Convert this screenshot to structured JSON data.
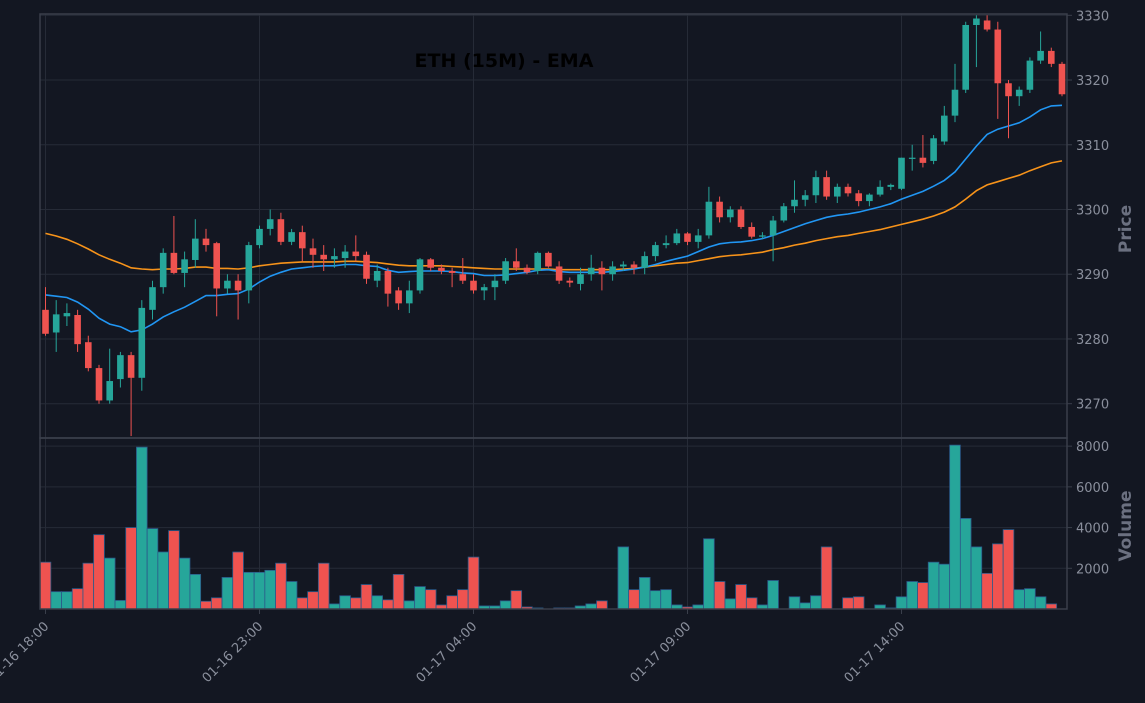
{
  "title": "ETH (15M) - EMA",
  "colors": {
    "background": "#131722",
    "grid": "#262b37",
    "frame": "#3a3f4b",
    "up": "#26a69a",
    "down": "#ef5350",
    "ema_fast": "#2196f3",
    "ema_slow": "#f7931a",
    "text": "#8a8f9c"
  },
  "chart_data": {
    "type": "candlestick",
    "title": "ETH (15M) - EMA",
    "x_tick_labels": [
      "01-16 18:00",
      "01-16 23:00",
      "01-17 04:00",
      "01-17 09:00",
      "01-17 14:00"
    ],
    "x_tick_indices": [
      0,
      20,
      40,
      60,
      80
    ],
    "price_axis": {
      "label": "Price",
      "ticks": [
        3270,
        3280,
        3290,
        3300,
        3310,
        3320,
        3330
      ],
      "range": [
        3264.7,
        3330.2
      ]
    },
    "volume_axis": {
      "label": "Volume",
      "ticks": [
        2000,
        4000,
        6000,
        8000
      ],
      "range": [
        0,
        8400
      ]
    },
    "grid": true,
    "candles": [
      {
        "o": 3284.5,
        "h": 3288,
        "l": 3280.5,
        "c": 3280.8
      },
      {
        "o": 3281,
        "h": 3286,
        "l": 3278,
        "c": 3283.8
      },
      {
        "o": 3283.5,
        "h": 3285.5,
        "l": 3282,
        "c": 3284
      },
      {
        "o": 3283.7,
        "h": 3284.5,
        "l": 3278,
        "c": 3279.2
      },
      {
        "o": 3279.5,
        "h": 3280.5,
        "l": 3275,
        "c": 3275.5
      },
      {
        "o": 3275.5,
        "h": 3276,
        "l": 3270,
        "c": 3270.5
      },
      {
        "o": 3270.5,
        "h": 3278.5,
        "l": 3270,
        "c": 3273.5
      },
      {
        "o": 3273.8,
        "h": 3278,
        "l": 3272.5,
        "c": 3277.5
      },
      {
        "o": 3277.5,
        "h": 3278,
        "l": 3265,
        "c": 3274
      },
      {
        "o": 3274,
        "h": 3286,
        "l": 3272,
        "c": 3284.8
      },
      {
        "o": 3284.5,
        "h": 3289,
        "l": 3283,
        "c": 3288
      },
      {
        "o": 3288,
        "h": 3294,
        "l": 3287,
        "c": 3293.3
      },
      {
        "o": 3293.3,
        "h": 3299,
        "l": 3290,
        "c": 3290.2
      },
      {
        "o": 3290.2,
        "h": 3293.5,
        "l": 3288,
        "c": 3292.3
      },
      {
        "o": 3292.2,
        "h": 3298.5,
        "l": 3291,
        "c": 3295.5
      },
      {
        "o": 3295.5,
        "h": 3297,
        "l": 3293.5,
        "c": 3294.5
      },
      {
        "o": 3294.8,
        "h": 3295,
        "l": 3283.5,
        "c": 3287.8
      },
      {
        "o": 3287.8,
        "h": 3290,
        "l": 3287,
        "c": 3289
      },
      {
        "o": 3289,
        "h": 3290,
        "l": 3283,
        "c": 3287.5
      },
      {
        "o": 3287.5,
        "h": 3295,
        "l": 3285.5,
        "c": 3294.5
      },
      {
        "o": 3294.5,
        "h": 3297.5,
        "l": 3294,
        "c": 3297
      },
      {
        "o": 3297,
        "h": 3300,
        "l": 3296,
        "c": 3298.5
      },
      {
        "o": 3298.5,
        "h": 3299.5,
        "l": 3294.5,
        "c": 3295
      },
      {
        "o": 3295,
        "h": 3297,
        "l": 3294.5,
        "c": 3296.5
      },
      {
        "o": 3296.5,
        "h": 3297.5,
        "l": 3292,
        "c": 3294
      },
      {
        "o": 3294,
        "h": 3295.5,
        "l": 3291,
        "c": 3293
      },
      {
        "o": 3293,
        "h": 3294.5,
        "l": 3290.5,
        "c": 3292.3
      },
      {
        "o": 3292.3,
        "h": 3294,
        "l": 3291,
        "c": 3292.8
      },
      {
        "o": 3292.5,
        "h": 3294.5,
        "l": 3291,
        "c": 3293.5
      },
      {
        "o": 3293.5,
        "h": 3296,
        "l": 3292,
        "c": 3292.8
      },
      {
        "o": 3293,
        "h": 3293.5,
        "l": 3288.5,
        "c": 3289.3
      },
      {
        "o": 3289,
        "h": 3291.5,
        "l": 3288,
        "c": 3290.5
      },
      {
        "o": 3290.5,
        "h": 3291,
        "l": 3285,
        "c": 3287
      },
      {
        "o": 3287.5,
        "h": 3288,
        "l": 3284.5,
        "c": 3285.5
      },
      {
        "o": 3285.5,
        "h": 3289,
        "l": 3284,
        "c": 3287.5
      },
      {
        "o": 3287.5,
        "h": 3292.5,
        "l": 3287,
        "c": 3292.3
      },
      {
        "o": 3292.3,
        "h": 3292.5,
        "l": 3290.5,
        "c": 3291
      },
      {
        "o": 3291,
        "h": 3291.5,
        "l": 3290,
        "c": 3290.5
      },
      {
        "o": 3290.5,
        "h": 3291,
        "l": 3288,
        "c": 3290.2
      },
      {
        "o": 3290,
        "h": 3292.5,
        "l": 3288.5,
        "c": 3289
      },
      {
        "o": 3289,
        "h": 3290,
        "l": 3287,
        "c": 3287.5
      },
      {
        "o": 3287.5,
        "h": 3288.5,
        "l": 3286,
        "c": 3288
      },
      {
        "o": 3288,
        "h": 3290,
        "l": 3286,
        "c": 3289
      },
      {
        "o": 3289,
        "h": 3292.5,
        "l": 3288.5,
        "c": 3292
      },
      {
        "o": 3292,
        "h": 3294,
        "l": 3290.5,
        "c": 3291
      },
      {
        "o": 3291,
        "h": 3291.5,
        "l": 3290,
        "c": 3290.3
      },
      {
        "o": 3290.5,
        "h": 3293.5,
        "l": 3290,
        "c": 3293.3
      },
      {
        "o": 3293.3,
        "h": 3293.5,
        "l": 3291,
        "c": 3291.2
      },
      {
        "o": 3291.2,
        "h": 3292,
        "l": 3288.5,
        "c": 3289
      },
      {
        "o": 3289,
        "h": 3289.5,
        "l": 3288,
        "c": 3288.7
      },
      {
        "o": 3288.5,
        "h": 3291,
        "l": 3287.5,
        "c": 3290
      },
      {
        "o": 3290,
        "h": 3293,
        "l": 3289,
        "c": 3291
      },
      {
        "o": 3291,
        "h": 3292,
        "l": 3287.5,
        "c": 3290
      },
      {
        "o": 3290,
        "h": 3292,
        "l": 3289,
        "c": 3291.2
      },
      {
        "o": 3291.2,
        "h": 3292,
        "l": 3290.5,
        "c": 3291.5
      },
      {
        "o": 3291.5,
        "h": 3292,
        "l": 3290,
        "c": 3291
      },
      {
        "o": 3291,
        "h": 3293.5,
        "l": 3290,
        "c": 3292.8
      },
      {
        "o": 3292.8,
        "h": 3295,
        "l": 3292,
        "c": 3294.5
      },
      {
        "o": 3294.5,
        "h": 3296,
        "l": 3294,
        "c": 3294.8
      },
      {
        "o": 3294.8,
        "h": 3297,
        "l": 3294.5,
        "c": 3296.3
      },
      {
        "o": 3296.3,
        "h": 3296.5,
        "l": 3294.5,
        "c": 3295
      },
      {
        "o": 3295,
        "h": 3297,
        "l": 3294,
        "c": 3296
      },
      {
        "o": 3296,
        "h": 3303.5,
        "l": 3295.5,
        "c": 3301.2
      },
      {
        "o": 3301.2,
        "h": 3302,
        "l": 3298,
        "c": 3298.8
      },
      {
        "o": 3298.8,
        "h": 3300.5,
        "l": 3298,
        "c": 3300
      },
      {
        "o": 3300,
        "h": 3300.5,
        "l": 3297,
        "c": 3297.3
      },
      {
        "o": 3297.3,
        "h": 3298,
        "l": 3295.5,
        "c": 3295.8
      },
      {
        "o": 3295.8,
        "h": 3296.5,
        "l": 3295.5,
        "c": 3296
      },
      {
        "o": 3296,
        "h": 3299,
        "l": 3292,
        "c": 3298.3
      },
      {
        "o": 3298.3,
        "h": 3301,
        "l": 3298,
        "c": 3300.5
      },
      {
        "o": 3300.5,
        "h": 3304.5,
        "l": 3299.5,
        "c": 3301.5
      },
      {
        "o": 3301.5,
        "h": 3303,
        "l": 3300.5,
        "c": 3302.2
      },
      {
        "o": 3302.2,
        "h": 3306,
        "l": 3301,
        "c": 3305
      },
      {
        "o": 3305,
        "h": 3306,
        "l": 3301.5,
        "c": 3302
      },
      {
        "o": 3302,
        "h": 3304,
        "l": 3301,
        "c": 3303.5
      },
      {
        "o": 3303.5,
        "h": 3304,
        "l": 3302,
        "c": 3302.5
      },
      {
        "o": 3302.5,
        "h": 3303,
        "l": 3300.5,
        "c": 3301.3
      },
      {
        "o": 3301.3,
        "h": 3302.5,
        "l": 3300.5,
        "c": 3302.3
      },
      {
        "o": 3302.3,
        "h": 3304.5,
        "l": 3302,
        "c": 3303.5
      },
      {
        "o": 3303.5,
        "h": 3304,
        "l": 3303,
        "c": 3303.8
      },
      {
        "o": 3303.2,
        "h": 3308,
        "l": 3303,
        "c": 3308
      },
      {
        "o": 3308,
        "h": 3310,
        "l": 3306,
        "c": 3308
      },
      {
        "o": 3308,
        "h": 3311.5,
        "l": 3306.5,
        "c": 3307.2
      },
      {
        "o": 3307.5,
        "h": 3311.5,
        "l": 3307,
        "c": 3311
      },
      {
        "o": 3310.5,
        "h": 3316,
        "l": 3310,
        "c": 3314.5
      },
      {
        "o": 3314.5,
        "h": 3322.5,
        "l": 3313.5,
        "c": 3318.5
      },
      {
        "o": 3318.5,
        "h": 3329,
        "l": 3318,
        "c": 3328.5
      },
      {
        "o": 3328.5,
        "h": 3330,
        "l": 3322,
        "c": 3329.5
      },
      {
        "o": 3329.2,
        "h": 3330,
        "l": 3327.5,
        "c": 3327.8
      },
      {
        "o": 3327.8,
        "h": 3329,
        "l": 3314,
        "c": 3319.5
      },
      {
        "o": 3319.5,
        "h": 3320,
        "l": 3311,
        "c": 3317.5
      },
      {
        "o": 3317.5,
        "h": 3319,
        "l": 3316,
        "c": 3318.5
      },
      {
        "o": 3318.5,
        "h": 3323.5,
        "l": 3318,
        "c": 3323
      },
      {
        "o": 3323,
        "h": 3327.5,
        "l": 3322.5,
        "c": 3324.5
      },
      {
        "o": 3324.5,
        "h": 3325,
        "l": 3322,
        "c": 3322.5
      },
      {
        "o": 3322.5,
        "h": 3322.8,
        "l": 3317.5,
        "c": 3317.8
      }
    ],
    "volumes": [
      2300,
      850,
      850,
      1000,
      2250,
      3650,
      2500,
      420,
      4000,
      7950,
      3950,
      2800,
      3850,
      2500,
      1700,
      380,
      550,
      1550,
      2800,
      1800,
      1800,
      1900,
      2250,
      1350,
      550,
      850,
      2250,
      250,
      650,
      550,
      1200,
      650,
      450,
      1700,
      400,
      1100,
      950,
      200,
      650,
      950,
      2550,
      150,
      150,
      400,
      900,
      100,
      50,
      0,
      50,
      50,
      150,
      250,
      400,
      0,
      3050,
      950,
      1550,
      900,
      950,
      200,
      100,
      200,
      3450,
      1350,
      500,
      1200,
      550,
      200,
      1400,
      0,
      600,
      300,
      650,
      3050,
      0,
      550,
      600,
      0,
      200,
      50,
      600,
      1350,
      1300,
      2300,
      2200,
      8050,
      4450,
      3050,
      1750,
      3200,
      3900,
      950,
      1000,
      600,
      250
    ],
    "ema_fast": [
      3286.8,
      3286.6,
      3286.4,
      3285.7,
      3284.6,
      3283.2,
      3282.3,
      3281.9,
      3281.1,
      3281.4,
      3282.3,
      3283.4,
      3284.2,
      3284.9,
      3285.8,
      3286.7,
      3286.7,
      3286.9,
      3287,
      3287.7,
      3288.8,
      3289.7,
      3290.3,
      3290.8,
      3291,
      3291.2,
      3291.3,
      3291.3,
      3291.5,
      3291.5,
      3291.3,
      3291.2,
      3290.6,
      3290.3,
      3290.4,
      3290.5,
      3290.5,
      3290.5,
      3290.4,
      3290.2,
      3290.1,
      3289.8,
      3289.8,
      3289.9,
      3290.1,
      3290.3,
      3290.6,
      3290.7,
      3290.4,
      3290.3,
      3290.3,
      3290.3,
      3290.3,
      3290.4,
      3290.6,
      3290.8,
      3291.1,
      3291.5,
      3292,
      3292.4,
      3292.8,
      3293.5,
      3294.2,
      3294.7,
      3294.9,
      3295,
      3295.2,
      3295.5,
      3296,
      3296.6,
      3297.2,
      3297.8,
      3298.3,
      3298.8,
      3299.1,
      3299.3,
      3299.6,
      3300,
      3300.4,
      3300.9,
      3301.6,
      3302.2,
      3302.8,
      3303.6,
      3304.5,
      3305.8,
      3307.8,
      3309.8,
      3311.6,
      3312.4,
      3312.9,
      3313.4,
      3314.3,
      3315.4,
      3316,
      3316.1
    ],
    "ema_slow": [
      3296.3,
      3295.9,
      3295.4,
      3294.7,
      3293.9,
      3293,
      3292.3,
      3291.7,
      3291,
      3290.8,
      3290.7,
      3290.8,
      3290.8,
      3290.9,
      3291.1,
      3291.1,
      3290.9,
      3290.9,
      3290.8,
      3291,
      3291.3,
      3291.5,
      3291.7,
      3291.8,
      3291.9,
      3291.9,
      3291.9,
      3291.9,
      3292,
      3292,
      3291.9,
      3291.8,
      3291.6,
      3291.4,
      3291.3,
      3291.3,
      3291.3,
      3291.3,
      3291.2,
      3291.1,
      3291,
      3290.9,
      3290.8,
      3290.8,
      3290.8,
      3290.8,
      3290.8,
      3290.8,
      3290.7,
      3290.7,
      3290.7,
      3290.7,
      3290.7,
      3290.7,
      3290.8,
      3290.9,
      3291.1,
      3291.3,
      3291.5,
      3291.7,
      3291.8,
      3292.1,
      3292.4,
      3292.7,
      3292.9,
      3293,
      3293.2,
      3293.4,
      3293.8,
      3294.1,
      3294.5,
      3294.8,
      3295.2,
      3295.5,
      3295.8,
      3296,
      3296.3,
      3296.6,
      3296.9,
      3297.3,
      3297.7,
      3298.1,
      3298.5,
      3299,
      3299.6,
      3300.4,
      3301.6,
      3302.9,
      3303.8,
      3304.3,
      3304.8,
      3305.3,
      3306,
      3306.6,
      3307.2,
      3307.5
    ]
  }
}
